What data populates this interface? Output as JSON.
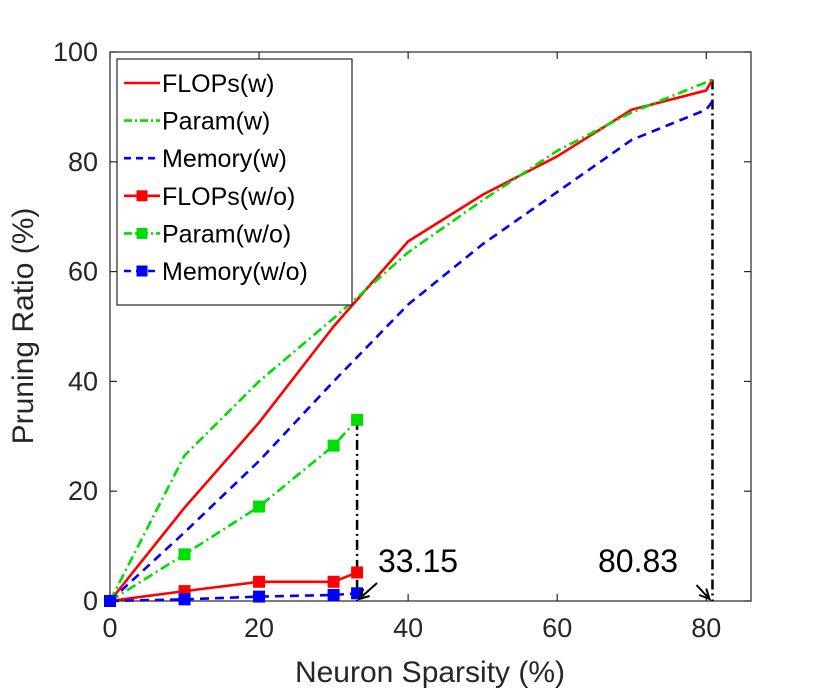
{
  "chart_data": {
    "type": "line",
    "title": "",
    "xlabel": "Neuron Sparsity (%)",
    "ylabel": "Pruning Ratio (%)",
    "xlim": [
      0,
      86
    ],
    "ylim": [
      0,
      100
    ],
    "xticks": [
      0,
      20,
      40,
      60,
      80
    ],
    "yticks": [
      0,
      20,
      40,
      60,
      80,
      100
    ],
    "grid": false,
    "legend_position": "top-left",
    "series": [
      {
        "name": "FLOPs(w)",
        "color": "#ff0000",
        "dash": "solid",
        "marker": "none",
        "x": [
          0,
          10,
          20,
          30,
          40,
          50,
          60,
          70,
          80,
          80.83
        ],
        "y": [
          0,
          17,
          32.5,
          50,
          65.5,
          74,
          81,
          89.5,
          93,
          95
        ]
      },
      {
        "name": "Param(w)",
        "color": "#00dd00",
        "dash": "dashdot",
        "marker": "none",
        "x": [
          0,
          10,
          20,
          30,
          40,
          50,
          60,
          70,
          80,
          80.83
        ],
        "y": [
          0,
          26.5,
          40,
          51.5,
          63.5,
          73,
          82,
          89,
          94.5,
          95
        ]
      },
      {
        "name": "Memory(w)",
        "color": "#0000ff",
        "dash": "dashed",
        "marker": "none",
        "x": [
          0,
          10,
          20,
          30,
          40,
          50,
          60,
          70,
          80,
          80.83
        ],
        "y": [
          0,
          12.5,
          25.5,
          40,
          54,
          65,
          74.5,
          84,
          89.5,
          91
        ]
      },
      {
        "name": "FLOPs(w/o)",
        "color": "#ff0000",
        "dash": "solid",
        "marker": "square",
        "x": [
          0,
          10,
          20,
          30,
          33.15
        ],
        "y": [
          0,
          1.8,
          3.5,
          3.5,
          5.2
        ]
      },
      {
        "name": "Param(w/o)",
        "color": "#00dd00",
        "dash": "dashdot",
        "marker": "square",
        "x": [
          0,
          10,
          20,
          30,
          33.15
        ],
        "y": [
          0,
          8.5,
          17.2,
          28.3,
          33
        ]
      },
      {
        "name": "Memory(w/o)",
        "color": "#0000ff",
        "dash": "dashed",
        "marker": "square",
        "x": [
          0,
          10,
          20,
          30,
          33.15
        ],
        "y": [
          0,
          0.3,
          0.8,
          1.1,
          1.4
        ]
      }
    ],
    "annotations": [
      {
        "label": "33.15",
        "x": 33.15,
        "y_top": 33
      },
      {
        "label": "80.83",
        "x": 80.83,
        "y_top": 95
      }
    ]
  }
}
